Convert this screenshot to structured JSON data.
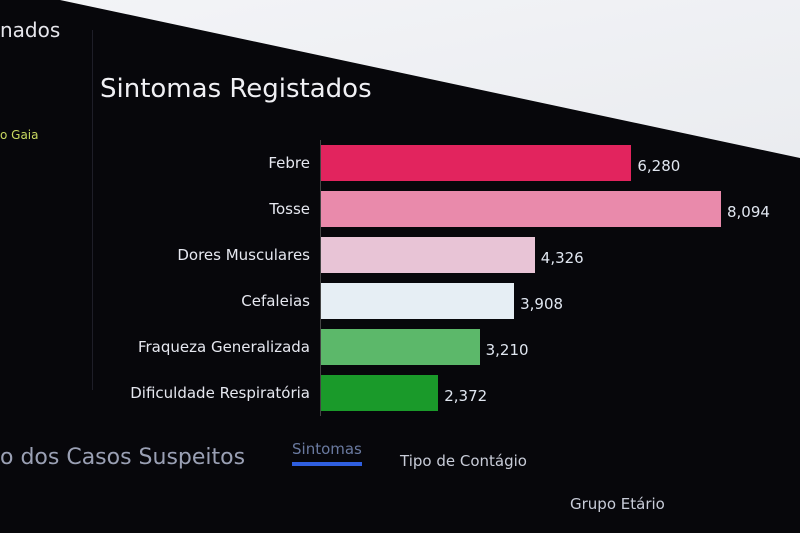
{
  "left_panel": {
    "title": "nados",
    "item": "o Gaia",
    "bottom_title": "o dos Casos Suspeitos"
  },
  "chart_data": {
    "type": "bar",
    "orientation": "horizontal",
    "title": "Sintomas Registados",
    "categories": [
      "Febre",
      "Tosse",
      "Dores Musculares",
      "Cefaleias",
      "Fraqueza Generalizada",
      "Dificuldade Respiratória"
    ],
    "values": [
      6280,
      8094,
      4326,
      3908,
      3210,
      2372
    ],
    "value_labels": [
      "6,280",
      "8,094",
      "4,326",
      "3,908",
      "3,210",
      "2,372"
    ],
    "colors": [
      "#e2245e",
      "#e98aab",
      "#e8c4d6",
      "#e6eef4",
      "#5cb86a",
      "#1a9a2a"
    ],
    "xlim": [
      0,
      8094
    ],
    "grid": false
  },
  "tabs": [
    {
      "label": "Sintomas",
      "active": true
    },
    {
      "label": "Tipo de Contágio",
      "active": false
    },
    {
      "label": "Grupo Etário",
      "active": false
    }
  ]
}
